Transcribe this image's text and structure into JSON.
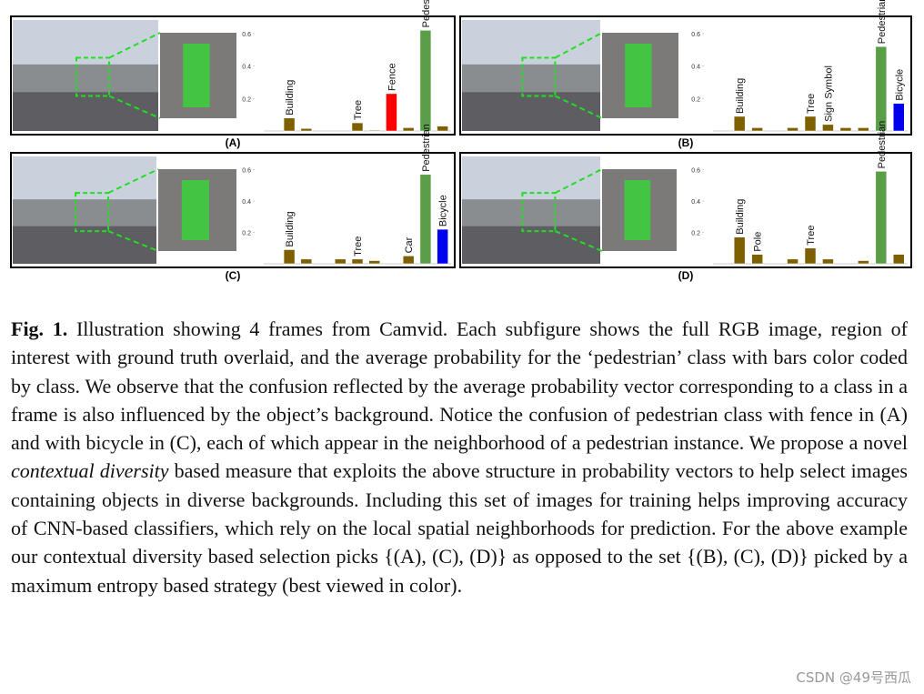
{
  "chart_data": [
    {
      "type": "bar",
      "label": "(A)",
      "categories": [
        null,
        "Building",
        null,
        null,
        null,
        "Tree",
        null,
        "Fence",
        null,
        "Pedestrian",
        null
      ],
      "values": [
        0,
        0.08,
        0.015,
        0,
        0,
        0.05,
        0.005,
        0.23,
        0.02,
        0.62,
        0.03
      ],
      "colors": [
        "#7f6000",
        "#7f6000",
        "#7f6000",
        "#7f6000",
        "#7f6000",
        "#7f6000",
        "#7f6000",
        "#ff0000",
        "#7f6000",
        "#5a9e47",
        "#7f6000"
      ],
      "ylim": [
        0,
        0.65
      ],
      "yticks": [
        0.2,
        0.4,
        0.6
      ]
    },
    {
      "type": "bar",
      "label": "(B)",
      "categories": [
        null,
        "Building",
        null,
        null,
        null,
        "Tree",
        "Sign Symbol",
        null,
        null,
        "Pedestrian",
        "Bicycle"
      ],
      "values": [
        0,
        0.09,
        0.02,
        0,
        0.02,
        0.09,
        0.04,
        0.02,
        0.02,
        0.52,
        0.17
      ],
      "colors": [
        "#7f6000",
        "#7f6000",
        "#7f6000",
        "#7f6000",
        "#7f6000",
        "#7f6000",
        "#7f6000",
        "#7f6000",
        "#7f6000",
        "#5a9e47",
        "#0000ee"
      ],
      "ylim": [
        0,
        0.65
      ],
      "yticks": [
        0.2,
        0.4,
        0.6
      ]
    },
    {
      "type": "bar",
      "label": "(C)",
      "categories": [
        null,
        "Building",
        null,
        null,
        null,
        "Tree",
        null,
        null,
        "Car",
        "Pedestrian",
        "Bicycle"
      ],
      "values": [
        0,
        0.09,
        0.03,
        0,
        0.03,
        0.03,
        0.02,
        0,
        0.05,
        0.57,
        0.22
      ],
      "colors": [
        "#7f6000",
        "#7f6000",
        "#7f6000",
        "#7f6000",
        "#7f6000",
        "#7f6000",
        "#7f6000",
        "#7f6000",
        "#7f6000",
        "#5a9e47",
        "#0000ee"
      ],
      "ylim": [
        0,
        0.65
      ],
      "yticks": [
        0.2,
        0.4,
        0.6
      ]
    },
    {
      "type": "bar",
      "label": "(D)",
      "categories": [
        null,
        "Building",
        "Pole",
        null,
        null,
        "Tree",
        null,
        null,
        null,
        "Pedestrian",
        null
      ],
      "values": [
        0,
        0.17,
        0.06,
        0,
        0.03,
        0.1,
        0.03,
        0,
        0.02,
        0.59,
        0.06
      ],
      "colors": [
        "#7f6000",
        "#7f6000",
        "#7f6000",
        "#7f6000",
        "#7f6000",
        "#7f6000",
        "#7f6000",
        "#7f6000",
        "#7f6000",
        "#5a9e47",
        "#7f6000"
      ],
      "ylim": [
        0,
        0.65
      ],
      "yticks": [
        0.2,
        0.4,
        0.6
      ]
    }
  ],
  "caption": {
    "label": "Fig. 1.",
    "text1": " Illustration showing 4 frames from Camvid. Each subfigure shows the full RGB image, region of interest with ground truth overlaid, and the average probability for the ‘pedestrian’ class with bars color coded by class. We observe that the confusion reflected by the average probability vector corresponding to a class in a frame is also influenced by the object’s background. Notice the confusion of pedestrian class with fence in (A) and with bicycle in (C), each of which appear in the neighborhood of a pedestrian instance. We propose a novel ",
    "emphasis": "contextual diversity",
    "text2": " based measure that exploits the above structure in probability vectors to help select images containing objects in diverse backgrounds. Including this set of images for training helps improving accuracy of CNN-based classifiers, which rely on the local spatial neighborhoods for prediction. For the above example our contextual diversity based selection picks {(A), (C), (D)} as opposed to the set {(B), (C), (D)} picked by a maximum entropy based strategy (best viewed in color)."
  },
  "watermark": "CSDN @49号西瓜"
}
